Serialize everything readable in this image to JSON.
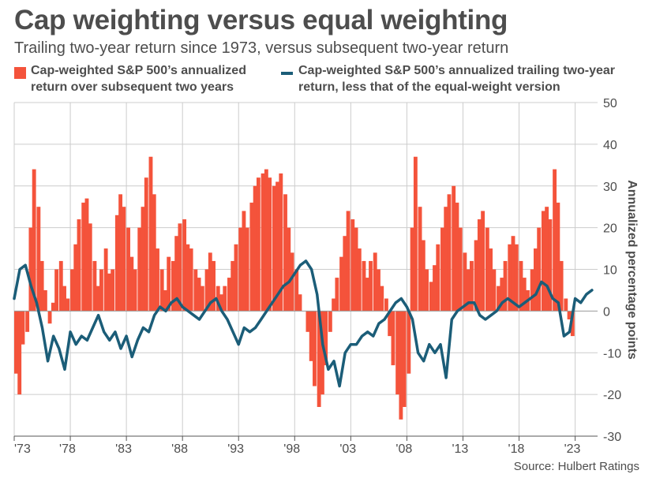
{
  "header": {
    "title": "Cap weighting versus equal weighting",
    "subtitle": "Trailing two-year return since 1973, versus subsequent two-year return"
  },
  "legend": {
    "bar_label": "Cap-weighted S&P 500’s annualized return over subsequent two years",
    "line_label": "Cap-weighted S&P 500’s annualized trailing two-year return, less that of the equal-weight version"
  },
  "source": "Source: Hulbert Ratings",
  "colors": {
    "bar": "#f4533b",
    "line": "#1b5d78",
    "grid": "#cccccc",
    "axis": "#555555"
  },
  "chart_data": {
    "type": "bar",
    "ylabel": "Annualized percentage points",
    "ylim": [
      -30,
      50
    ],
    "y_ticks": [
      "50",
      "40",
      "30",
      "20",
      "10",
      "0",
      "-10",
      "-20",
      "-30"
    ],
    "y_tick_values": [
      50,
      40,
      30,
      20,
      10,
      0,
      -10,
      -20,
      -30
    ],
    "x_tick_labels": [
      "'73",
      "'78",
      "'83",
      "'88",
      "'93",
      "'98",
      "'03",
      "'08",
      "'13",
      "'18",
      "'23"
    ],
    "x_tick_values": [
      1973,
      1978,
      1983,
      1988,
      1993,
      1998,
      2003,
      2008,
      2013,
      2018,
      2023
    ],
    "xlim": [
      1973,
      2025
    ],
    "grid": true,
    "legend_position": "top",
    "bar_series": {
      "name": "Cap-weighted S&P 500’s annualized return over subsequent two years",
      "x": [
        1973.0,
        1973.3,
        1973.6,
        1974.0,
        1974.3,
        1974.6,
        1975.0,
        1975.3,
        1975.6,
        1976.0,
        1976.3,
        1976.6,
        1977.0,
        1977.3,
        1977.6,
        1978.0,
        1978.3,
        1978.6,
        1979.0,
        1979.3,
        1979.6,
        1980.0,
        1980.3,
        1980.6,
        1981.0,
        1981.3,
        1981.6,
        1982.0,
        1982.3,
        1982.6,
        1983.0,
        1983.3,
        1983.6,
        1984.0,
        1984.3,
        1984.6,
        1985.0,
        1985.3,
        1985.6,
        1986.0,
        1986.3,
        1986.6,
        1987.0,
        1987.3,
        1987.6,
        1988.0,
        1988.3,
        1988.6,
        1989.0,
        1989.3,
        1989.6,
        1990.0,
        1990.3,
        1990.6,
        1991.0,
        1991.3,
        1991.6,
        1992.0,
        1992.3,
        1992.6,
        1993.0,
        1993.3,
        1993.6,
        1994.0,
        1994.3,
        1994.6,
        1995.0,
        1995.3,
        1995.6,
        1996.0,
        1996.3,
        1996.6,
        1997.0,
        1997.3,
        1997.6,
        1998.0,
        1998.3,
        1998.6,
        1999.0,
        1999.3,
        1999.6,
        2000.0,
        2000.3,
        2000.6,
        2001.0,
        2001.3,
        2001.6,
        2002.0,
        2002.3,
        2002.6,
        2003.0,
        2003.3,
        2003.6,
        2004.0,
        2004.3,
        2004.6,
        2005.0,
        2005.3,
        2005.6,
        2006.0,
        2006.3,
        2006.6,
        2007.0,
        2007.3,
        2007.6,
        2008.0,
        2008.3,
        2008.6,
        2009.0,
        2009.3,
        2009.6,
        2010.0,
        2010.3,
        2010.6,
        2011.0,
        2011.3,
        2011.6,
        2012.0,
        2012.3,
        2012.6,
        2013.0,
        2013.3,
        2013.6,
        2014.0,
        2014.3,
        2014.6,
        2015.0,
        2015.3,
        2015.6,
        2016.0,
        2016.3,
        2016.6,
        2017.0,
        2017.3,
        2017.6,
        2018.0,
        2018.3,
        2018.6,
        2019.0,
        2019.3,
        2019.6,
        2020.0,
        2020.3,
        2020.6,
        2021.0,
        2021.3,
        2021.6,
        2022.0,
        2022.3,
        2022.6
      ],
      "values": [
        -15,
        -20,
        -8,
        -5,
        20,
        34,
        25,
        12,
        5,
        -3,
        2,
        10,
        12,
        6,
        3,
        10,
        16,
        22,
        26,
        27,
        21,
        12,
        6,
        10,
        15,
        9,
        10,
        23,
        28,
        25,
        20,
        13,
        10,
        20,
        25,
        32,
        37,
        28,
        15,
        10,
        5,
        13,
        12,
        18,
        21,
        22,
        16,
        15,
        10,
        8,
        6,
        10,
        14,
        12,
        6,
        4,
        6,
        8,
        12,
        16,
        20,
        24,
        20,
        26,
        30,
        32,
        33,
        34,
        32,
        30,
        31,
        33,
        28,
        20,
        14,
        10,
        4,
        0,
        -5,
        -12,
        -18,
        -23,
        -20,
        -13,
        -5,
        3,
        8,
        13,
        18,
        24,
        22,
        20,
        15,
        12,
        8,
        12,
        14,
        10,
        6,
        3,
        -6,
        -13,
        -20,
        -26,
        -23,
        -15,
        20,
        37,
        25,
        17,
        10,
        7,
        11,
        16,
        20,
        25,
        28,
        30,
        26,
        20,
        14,
        10,
        12,
        17,
        22,
        24,
        20,
        15,
        10,
        6,
        8,
        12,
        16,
        18,
        16,
        12,
        8,
        5,
        10,
        15,
        20,
        24,
        25,
        22,
        34,
        26,
        12,
        3,
        -2,
        -6
      ]
    },
    "line_series": {
      "name": "Cap-weighted S&P 500’s annualized trailing two-year return, less that of the equal-weight version",
      "x": [
        1973.0,
        1973.5,
        1974.0,
        1974.5,
        1975.0,
        1975.5,
        1976.0,
        1976.5,
        1977.0,
        1977.5,
        1978.0,
        1978.5,
        1979.0,
        1979.5,
        1980.0,
        1980.5,
        1981.0,
        1981.5,
        1982.0,
        1982.5,
        1983.0,
        1983.5,
        1984.0,
        1984.5,
        1985.0,
        1985.5,
        1986.0,
        1986.5,
        1987.0,
        1987.5,
        1988.0,
        1988.5,
        1989.0,
        1989.5,
        1990.0,
        1990.5,
        1991.0,
        1991.5,
        1992.0,
        1992.5,
        1993.0,
        1993.5,
        1994.0,
        1994.5,
        1995.0,
        1995.5,
        1996.0,
        1996.5,
        1997.0,
        1997.5,
        1998.0,
        1998.5,
        1999.0,
        1999.5,
        2000.0,
        2000.5,
        2001.0,
        2001.5,
        2002.0,
        2002.5,
        2003.0,
        2003.5,
        2004.0,
        2004.5,
        2005.0,
        2005.5,
        2006.0,
        2006.5,
        2007.0,
        2007.5,
        2008.0,
        2008.5,
        2009.0,
        2009.5,
        2010.0,
        2010.5,
        2011.0,
        2011.5,
        2012.0,
        2012.5,
        2013.0,
        2013.5,
        2014.0,
        2014.5,
        2015.0,
        2015.5,
        2016.0,
        2016.5,
        2017.0,
        2017.5,
        2018.0,
        2018.5,
        2019.0,
        2019.5,
        2020.0,
        2020.5,
        2021.0,
        2021.5,
        2022.0,
        2022.5,
        2023.0,
        2023.5,
        2024.0,
        2024.5
      ],
      "values": [
        3,
        10,
        11,
        6,
        2,
        -4,
        -12,
        -6,
        -9,
        -14,
        -5,
        -8,
        -6,
        -7,
        -4,
        -1,
        -5,
        -7,
        -5,
        -9,
        -6,
        -11,
        -7,
        -4,
        -5,
        -1,
        1,
        0,
        2,
        3,
        1,
        0,
        -1,
        -2,
        0,
        2,
        3,
        0,
        -2,
        -5,
        -8,
        -4,
        -5,
        -4,
        -2,
        0,
        2,
        4,
        6,
        7,
        9,
        11,
        12,
        10,
        4,
        -8,
        -14,
        -12,
        -18,
        -10,
        -8,
        -8,
        -6,
        -5,
        -6,
        -3,
        -2,
        0,
        2,
        3,
        1,
        -2,
        -10,
        -12,
        -8,
        -10,
        -8,
        -16,
        -2,
        0,
        1,
        2,
        2,
        -1,
        -2,
        -1,
        0,
        2,
        3,
        2,
        1,
        2,
        3,
        4,
        7,
        6,
        3,
        2,
        -6,
        -5,
        3,
        2,
        4,
        5
      ]
    }
  }
}
